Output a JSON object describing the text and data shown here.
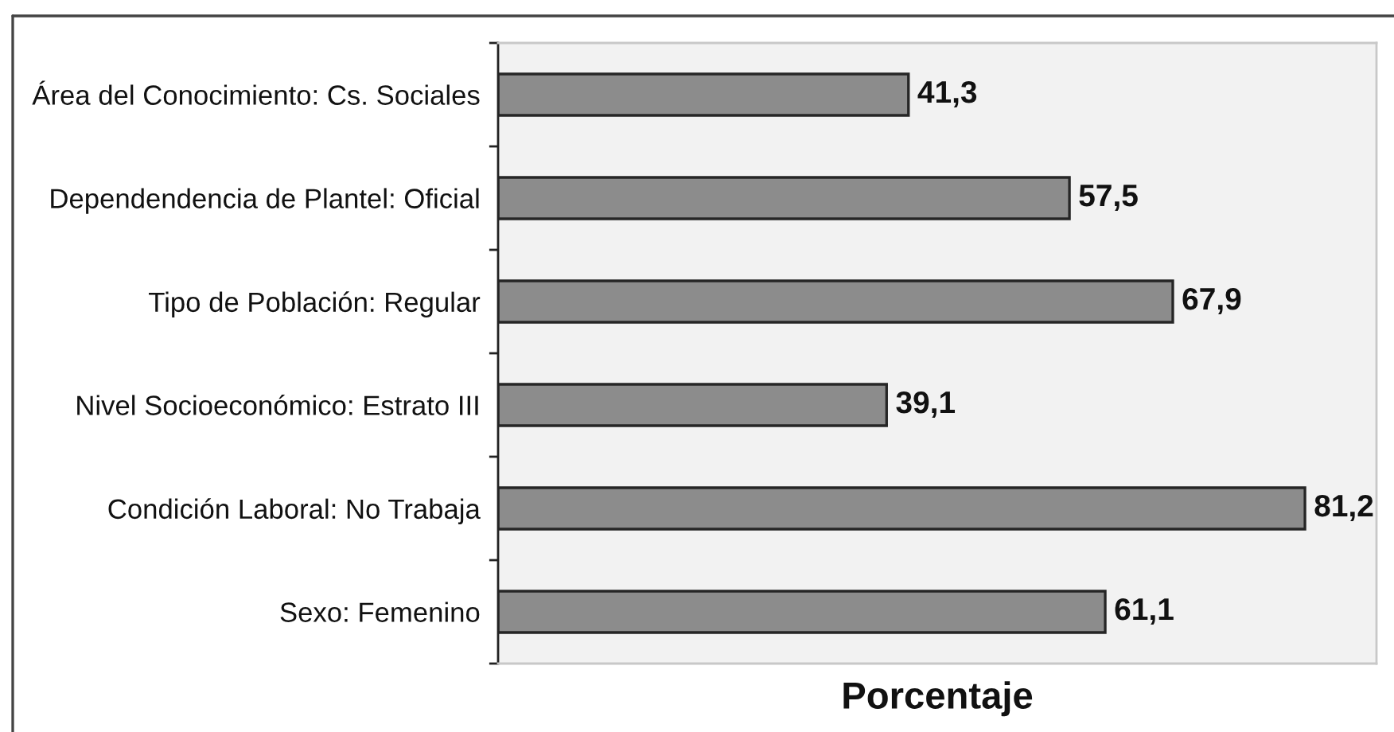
{
  "chart_data": {
    "type": "bar",
    "orientation": "horizontal",
    "categories": [
      "Área del Conocimiento: Cs. Sociales",
      "Dependendencia de Plantel: Oficial",
      "Tipo de Población: Regular",
      "Nivel Socioeconómico: Estrato III",
      "Condición Laboral: No Trabaja",
      "Sexo: Femenino"
    ],
    "values": [
      41.3,
      57.5,
      67.9,
      39.1,
      81.2,
      61.1
    ],
    "value_labels": [
      "41,3",
      "57,5",
      "67,9",
      "39,1",
      "81,2",
      "61,1"
    ],
    "color": "#8c8c8c",
    "xlabel": "Porcentaje",
    "xlim": [
      0,
      88.4
    ],
    "tick_labels": "y"
  }
}
